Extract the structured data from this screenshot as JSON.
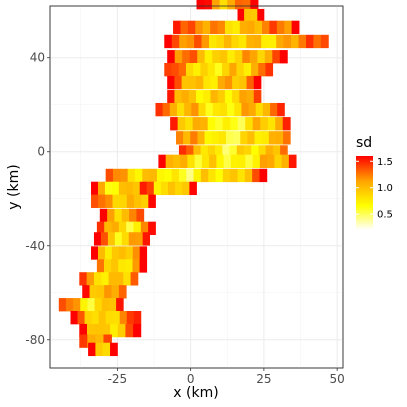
{
  "chart_data": {
    "type": "heatmap",
    "title": "",
    "xlabel": "x (km)",
    "ylabel": "y (km)",
    "xlim": [
      -48,
      52
    ],
    "ylim": [
      -92,
      62
    ],
    "x_ticks": [
      -25,
      0,
      25,
      50
    ],
    "x_tick_labels": [
      "-25",
      "0",
      "25",
      "50"
    ],
    "y_ticks": [
      -80,
      -40,
      0,
      40
    ],
    "y_tick_labels": [
      "-80",
      "-40",
      "0",
      "40"
    ],
    "grid": true,
    "legend": {
      "title": "sd",
      "placement": "right",
      "range": [
        0.2,
        1.6
      ],
      "ticks": [
        0.5,
        1.0,
        1.5
      ],
      "tick_labels": [
        "0.5",
        "1.0",
        "1.5"
      ],
      "colors": [
        "#ffffff",
        "#ffff00",
        "#ffa500",
        "#ff0000"
      ]
    },
    "transects": [
      {
        "y": 63.5,
        "x0": 2,
        "x1": 23,
        "sd": 1.3
      },
      {
        "y": 58.0,
        "x0": 16,
        "x1": 25,
        "sd": 1.3
      },
      {
        "y": 53.0,
        "x0": -6,
        "x1": 37,
        "sd": 1.2
      },
      {
        "y": 47.0,
        "x0": -9,
        "x1": 47,
        "sd": 1.1
      },
      {
        "y": 40.5,
        "x0": -8,
        "x1": 33,
        "sd": 1.1
      },
      {
        "y": 35.0,
        "x0": -9,
        "x1": 28,
        "sd": 1.0
      },
      {
        "y": 29.5,
        "x0": -8,
        "x1": 24,
        "sd": 1.1
      },
      {
        "y": 23.5,
        "x0": -8,
        "x1": 24,
        "sd": 1.0
      },
      {
        "y": 18.0,
        "x0": -12,
        "x1": 32,
        "sd": 1.0
      },
      {
        "y": 12.0,
        "x0": -7,
        "x1": 34,
        "sd": 0.9
      },
      {
        "y": 6.0,
        "x0": -5,
        "x1": 34,
        "sd": 0.9
      },
      {
        "y": 0.0,
        "x0": -4,
        "x1": 33,
        "sd": 0.9
      },
      {
        "y": -4.0,
        "x0": -11,
        "x1": 36,
        "sd": 0.9
      },
      {
        "y": -10.0,
        "x0": -29,
        "x1": 26,
        "sd": 0.9
      },
      {
        "y": -15.5,
        "x0": -34,
        "x1": -15,
        "sd": 1.0
      },
      {
        "y": -15.5,
        "x0": -15,
        "x1": 2,
        "sd": 1.0
      },
      {
        "y": -21.0,
        "x0": -34,
        "x1": -12,
        "sd": 1.1
      },
      {
        "y": -27.0,
        "x0": -31,
        "x1": -16,
        "sd": 1.1
      },
      {
        "y": -32.5,
        "x0": -32,
        "x1": -12,
        "sd": 1.0
      },
      {
        "y": -37.0,
        "x0": -33,
        "x1": -14,
        "sd": 1.1
      },
      {
        "y": -43.0,
        "x0": -34,
        "x1": -15,
        "sd": 1.1
      },
      {
        "y": -48.5,
        "x0": -32,
        "x1": -15,
        "sd": 1.0
      },
      {
        "y": -54.0,
        "x0": -38,
        "x1": -18,
        "sd": 1.0
      },
      {
        "y": -59.5,
        "x0": -37,
        "x1": -22,
        "sd": 1.1
      },
      {
        "y": -65.0,
        "x0": -45,
        "x1": -23,
        "sd": 1.0
      },
      {
        "y": -70.5,
        "x0": -41,
        "x1": -17,
        "sd": 1.1
      },
      {
        "y": -76.0,
        "x0": -38,
        "x1": -17,
        "sd": 1.1
      },
      {
        "y": -80.5,
        "x0": -38,
        "x1": -27,
        "sd": 1.2
      },
      {
        "y": -84.0,
        "x0": -35,
        "x1": -25,
        "sd": 1.2
      }
    ]
  }
}
